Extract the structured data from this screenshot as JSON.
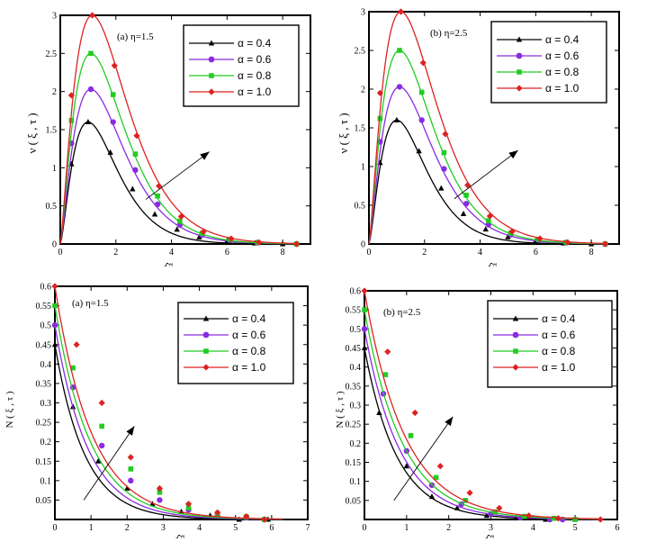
{
  "colors": {
    "a04": "#000000",
    "a06": "#8a2be2",
    "a08": "#22cc22",
    "a10": "#dd2222"
  },
  "chart_data": [
    {
      "type": "line",
      "panel_label": "(a)  η=1.5",
      "ylabel": "ν ( ξ , τ )",
      "xlabel": "ξ",
      "xlim": [
        0,
        9
      ],
      "ylim": [
        0,
        3
      ],
      "xticks": [
        0,
        2,
        4,
        6,
        8
      ],
      "yticks": [
        0,
        0.5,
        1,
        1.5,
        2,
        2.5,
        3
      ],
      "arrow": {
        "from": [
          5.3,
          0.8
        ],
        "to": [
          14.5,
          2.2
        ],
        "note": "direction of increasing alpha"
      },
      "series": [
        {
          "name": "α = 0.4",
          "color_key": "a04",
          "marker": "triangle",
          "peak_x": 1.0,
          "peak": 1.6,
          "b": 1.5,
          "end_x": 8.5,
          "x": [
            0.4,
            1.0,
            1.8,
            2.6,
            3.4,
            4.2,
            5.0,
            6.0,
            7.0,
            8.0
          ],
          "y": [
            1.05,
            1.6,
            1.2,
            0.72,
            0.39,
            0.19,
            0.09,
            0.04,
            0.01,
            0.0
          ]
        },
        {
          "name": "α = 0.6",
          "color_key": "a06",
          "marker": "circle",
          "peak_x": 1.1,
          "peak": 2.03,
          "b": 1.42,
          "end_x": 8.5,
          "x": [
            0.4,
            1.1,
            1.9,
            2.7,
            3.5,
            4.3,
            5.1,
            6.1,
            7.1,
            8.5
          ],
          "y": [
            1.32,
            2.03,
            1.6,
            0.97,
            0.52,
            0.25,
            0.12,
            0.05,
            0.02,
            0.0
          ]
        },
        {
          "name": "α = 0.8",
          "color_key": "a08",
          "marker": "square",
          "peak_x": 1.1,
          "peak": 2.5,
          "b": 1.4,
          "end_x": 8.5,
          "x": [
            0.4,
            1.1,
            1.9,
            2.7,
            3.5,
            4.3,
            5.1,
            6.1,
            7.1,
            8.5
          ],
          "y": [
            1.62,
            2.5,
            1.96,
            1.18,
            0.63,
            0.3,
            0.14,
            0.06,
            0.02,
            0.0
          ]
        },
        {
          "name": "α = 1.0",
          "color_key": "a10",
          "marker": "diamond",
          "peak_x": 1.15,
          "peak": 3.0,
          "b": 1.38,
          "end_x": 8.5,
          "x": [
            0.4,
            1.15,
            1.95,
            2.75,
            3.55,
            4.35,
            5.15,
            6.15,
            7.15,
            8.5
          ],
          "y": [
            1.95,
            3.0,
            2.34,
            1.42,
            0.76,
            0.36,
            0.16,
            0.07,
            0.02,
            0.0
          ]
        }
      ]
    },
    {
      "type": "line",
      "panel_label": "(b)  η=2.5",
      "ylabel": "ν ( ξ , τ )",
      "xlabel": "ξ",
      "xlim": [
        0,
        9
      ],
      "ylim": [
        0,
        3
      ],
      "xticks": [
        0,
        2,
        4,
        6,
        8
      ],
      "yticks": [
        0,
        0.5,
        1,
        1.5,
        2,
        2.5,
        3
      ],
      "arrow": {
        "from": [
          5.3,
          0.8
        ],
        "to": [
          14.5,
          2.2
        ],
        "note": "direction of increasing alpha"
      },
      "series": [
        {
          "name": "α = 0.4",
          "color_key": "a04",
          "marker": "triangle",
          "peak_x": 1.0,
          "peak": 1.6,
          "b": 1.5,
          "end_x": 8.5,
          "x": [
            0.4,
            1.0,
            1.8,
            2.6,
            3.4,
            4.2,
            5.0,
            6.0,
            7.0,
            8.0
          ],
          "y": [
            1.05,
            1.6,
            1.2,
            0.72,
            0.39,
            0.19,
            0.09,
            0.04,
            0.01,
            0.0
          ]
        },
        {
          "name": "α = 0.6",
          "color_key": "a06",
          "marker": "circle",
          "peak_x": 1.1,
          "peak": 2.03,
          "b": 1.42,
          "end_x": 8.5,
          "x": [
            0.4,
            1.1,
            1.9,
            2.7,
            3.5,
            4.3,
            5.1,
            6.1,
            7.1,
            8.5
          ],
          "y": [
            1.32,
            2.03,
            1.6,
            0.97,
            0.52,
            0.25,
            0.12,
            0.05,
            0.02,
            0.0
          ]
        },
        {
          "name": "α = 0.8",
          "color_key": "a08",
          "marker": "square",
          "peak_x": 1.1,
          "peak": 2.5,
          "b": 1.4,
          "end_x": 8.5,
          "x": [
            0.4,
            1.1,
            1.9,
            2.7,
            3.5,
            4.3,
            5.1,
            6.1,
            7.1,
            8.5
          ],
          "y": [
            1.62,
            2.5,
            1.96,
            1.18,
            0.63,
            0.3,
            0.14,
            0.06,
            0.02,
            0.0
          ]
        },
        {
          "name": "α = 1.0",
          "color_key": "a10",
          "marker": "diamond",
          "peak_x": 1.15,
          "peak": 3.0,
          "b": 1.38,
          "end_x": 8.5,
          "x": [
            0.4,
            1.15,
            1.95,
            2.75,
            3.55,
            4.35,
            5.15,
            6.15,
            7.15,
            8.5
          ],
          "y": [
            1.95,
            3.0,
            2.34,
            1.42,
            0.76,
            0.36,
            0.16,
            0.07,
            0.02,
            0.0
          ]
        }
      ]
    },
    {
      "type": "line",
      "panel_label": "(a)  η=1.5",
      "ylabel": "N ( ξ , τ )",
      "xlabel": "ξ",
      "xlim": [
        0,
        7
      ],
      "ylim": [
        0,
        0.6
      ],
      "xticks": [
        0,
        1,
        2,
        3,
        4,
        5,
        6,
        7
      ],
      "yticks": [
        0.05,
        0.1,
        0.15,
        0.2,
        0.25,
        0.3,
        0.35,
        0.4,
        0.45,
        0.5,
        0.55,
        0.6
      ],
      "ytick_labels": [
        "0.05",
        "0.1",
        "0.15",
        "0.2",
        "0.25",
        "0.3",
        "0.35",
        "0.4",
        "0.45",
        "0.5",
        "0.55",
        "0.6"
      ],
      "arrow": {
        "from": [
          0.8,
          0.05
        ],
        "to": [
          2.2,
          0.24
        ],
        "note": "direction of increasing alpha"
      },
      "series": [
        {
          "name": "α = 0.4",
          "color_key": "a04",
          "marker": "triangle",
          "start": 0.45,
          "k": 1.2,
          "end_x": 6.3,
          "x": [
            0,
            0.5,
            1.2,
            2.0,
            2.7,
            3.5,
            4.3,
            5.1,
            5.9
          ],
          "y": [
            0.45,
            0.29,
            0.15,
            0.08,
            0.04,
            0.02,
            0.01,
            0.0,
            0.0
          ]
        },
        {
          "name": "α = 0.6",
          "color_key": "a06",
          "marker": "circle",
          "start": 0.5,
          "k": 1.1,
          "end_x": 6.3,
          "x": [
            0,
            0.5,
            1.3,
            2.1,
            2.9,
            3.7,
            4.5,
            5.3,
            5.8
          ],
          "y": [
            0.5,
            0.34,
            0.19,
            0.1,
            0.05,
            0.025,
            0.01,
            0.005,
            0.0
          ]
        },
        {
          "name": "α = 0.8",
          "color_key": "a08",
          "marker": "square",
          "start": 0.55,
          "k": 1.03,
          "end_x": 6.3,
          "x": [
            0,
            0.5,
            1.3,
            2.1,
            2.9,
            3.7,
            4.5,
            5.3,
            5.8
          ],
          "y": [
            0.55,
            0.39,
            0.24,
            0.13,
            0.07,
            0.03,
            0.015,
            0.007,
            0.0
          ]
        },
        {
          "name": "α = 1.0",
          "color_key": "a10",
          "marker": "diamond",
          "start": 0.6,
          "k": 0.98,
          "end_x": 6.3,
          "x": [
            0,
            0.6,
            1.3,
            2.1,
            2.9,
            3.7,
            4.5,
            5.3,
            5.8
          ],
          "y": [
            0.6,
            0.45,
            0.3,
            0.16,
            0.08,
            0.04,
            0.018,
            0.008,
            0.0
          ]
        }
      ]
    },
    {
      "type": "line",
      "panel_label": "(b)  η=2.5",
      "ylabel": "N ( ξ , τ )",
      "xlabel": "ξ",
      "xlim": [
        0,
        6
      ],
      "ylim": [
        0,
        0.6
      ],
      "xticks": [
        0,
        1,
        2,
        3,
        4,
        5,
        6
      ],
      "yticks": [
        0.05,
        0.1,
        0.15,
        0.2,
        0.25,
        0.3,
        0.35,
        0.4,
        0.45,
        0.5,
        0.55,
        0.6
      ],
      "ytick_labels": [
        "0.05",
        "0.1",
        "0.15",
        "0.2",
        "0.25",
        "0.3",
        "0.35",
        "0.4",
        "0.45",
        "0.5",
        "0.55",
        "0.6"
      ],
      "arrow": {
        "from": [
          0.7,
          0.05
        ],
        "to": [
          2.1,
          0.27
        ],
        "note": "direction of increasing alpha"
      },
      "series": [
        {
          "name": "α = 0.4",
          "color_key": "a04",
          "marker": "triangle",
          "start": 0.45,
          "k": 1.3,
          "end_x": 5.6,
          "x": [
            0,
            0.35,
            1.0,
            1.6,
            2.2,
            2.9,
            3.6,
            4.3,
            5.0
          ],
          "y": [
            0.45,
            0.28,
            0.14,
            0.06,
            0.03,
            0.01,
            0.005,
            0.0,
            0.0
          ]
        },
        {
          "name": "α = 0.6",
          "color_key": "a06",
          "marker": "circle",
          "start": 0.5,
          "k": 1.2,
          "end_x": 5.6,
          "x": [
            0,
            0.45,
            1.0,
            1.6,
            2.3,
            3.0,
            3.7,
            4.4,
            4.7
          ],
          "y": [
            0.5,
            0.33,
            0.18,
            0.09,
            0.04,
            0.015,
            0.005,
            0.0,
            0.0
          ]
        },
        {
          "name": "α = 0.8",
          "color_key": "a08",
          "marker": "square",
          "start": 0.55,
          "k": 1.12,
          "end_x": 5.6,
          "x": [
            0,
            0.5,
            1.1,
            1.7,
            2.4,
            3.1,
            3.8,
            4.5,
            5.0
          ],
          "y": [
            0.55,
            0.38,
            0.22,
            0.11,
            0.05,
            0.02,
            0.008,
            0.003,
            0.0
          ]
        },
        {
          "name": "α = 1.0",
          "color_key": "a10",
          "marker": "diamond",
          "start": 0.6,
          "k": 1.05,
          "end_x": 5.6,
          "x": [
            0,
            0.55,
            1.2,
            1.8,
            2.5,
            3.2,
            3.9,
            4.6,
            5.6
          ],
          "y": [
            0.6,
            0.44,
            0.28,
            0.14,
            0.07,
            0.03,
            0.01,
            0.003,
            0.0
          ]
        }
      ]
    }
  ]
}
